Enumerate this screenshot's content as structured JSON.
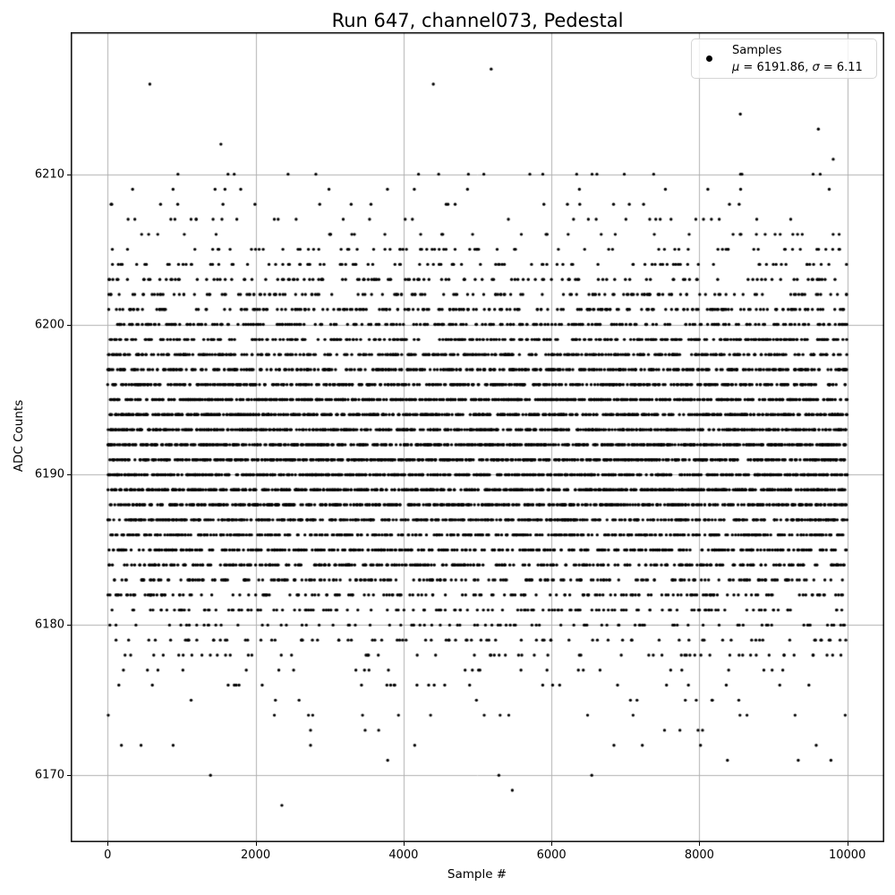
{
  "chart_data": {
    "type": "scatter",
    "title": "Run 647, channel073, Pedestal",
    "xlabel": "Sample #",
    "ylabel": "ADC Counts",
    "xlim": [
      -500,
      10500
    ],
    "ylim": [
      6165.55,
      6219.45
    ],
    "xticks": [
      0,
      2000,
      4000,
      6000,
      8000,
      10000
    ],
    "yticks": [
      6170,
      6180,
      6190,
      6200,
      6210
    ],
    "grid": true,
    "grid_color": "#b0b0b0",
    "spine_color": "#000000",
    "marker_color": "#000000",
    "marker_radius_px": 1.7,
    "legend": {
      "position": "upper-right",
      "label_line1": "Samples",
      "mu_symbol": "μ",
      "mu_text": " = 6191.86, ",
      "sigma_symbol": "σ",
      "sigma_text": " = 6.11"
    },
    "series": [
      {
        "name": "Samples",
        "description": "10000 sequential ADC pedestal samples; integer ADC counts distributed approximately normally",
        "n": 10000,
        "x_min": 0,
        "x_max": 9999,
        "mu": 6191.86,
        "sigma": 6.11,
        "y_core_min": 6172,
        "y_core_max": 6210,
        "y_min_observed": 6168,
        "y_max_observed": 6217,
        "seed": 647
      }
    ],
    "notable_points": [
      [
        570,
        6216
      ],
      [
        1531,
        6212
      ],
      [
        4403,
        6216
      ],
      [
        5185,
        6217
      ],
      [
        8554,
        6214
      ],
      [
        9609,
        6213
      ],
      [
        9810,
        6211
      ],
      [
        8,
        6174
      ],
      [
        186,
        6172
      ],
      [
        885,
        6172
      ],
      [
        1390,
        6170
      ],
      [
        2254,
        6174
      ],
      [
        2715,
        6174
      ],
      [
        2772,
        6174
      ],
      [
        2743,
        6173
      ],
      [
        2743,
        6172
      ],
      [
        3786,
        6171
      ],
      [
        2355,
        6168
      ],
      [
        5091,
        6174
      ],
      [
        5289,
        6170
      ],
      [
        5471,
        6169
      ],
      [
        6489,
        6174
      ],
      [
        6845,
        6172
      ],
      [
        6545,
        6170
      ],
      [
        8380,
        6171
      ],
      [
        9337,
        6171
      ],
      [
        9779,
        6171
      ],
      [
        9972,
        6174
      ]
    ]
  }
}
